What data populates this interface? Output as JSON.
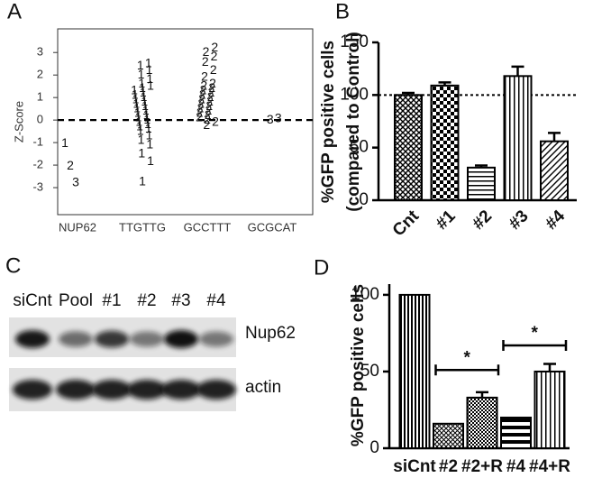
{
  "panel_labels": [
    "A",
    "B",
    "C",
    "D"
  ],
  "chart_data": [
    {
      "type": "strip",
      "y_label": "Z-Score",
      "categories": [
        "NUP62",
        "TTGTTG",
        "GCCTTT",
        "GCGCAT"
      ],
      "ylim": [
        -4.2,
        4.05
      ],
      "yticks": [
        -3,
        -2,
        -1,
        0,
        1,
        2,
        3
      ],
      "hline": 0,
      "series": [
        {
          "marker": "1",
          "color": "#1a1a1a",
          "x": [
            "NUP62",
            "TTGTTG",
            "TTGTTG",
            "TTGTTG",
            "TTGTTG",
            "TTGTTG",
            "TTGTTG",
            "TTGTTG",
            "TTGTTG",
            "TTGTTG",
            "TTGTTG",
            "TTGTTG",
            "TTGTTG",
            "TTGTTG",
            "TTGTTG",
            "TTGTTG",
            "TTGTTG",
            "TTGTTG",
            "TTGTTG",
            "TTGTTG",
            "TTGTTG",
            "TTGTTG",
            "TTGTTG",
            "TTGTTG",
            "TTGTTG",
            "TTGTTG",
            "TTGTTG",
            "TTGTTG",
            "TTGTTG",
            "TTGTTG",
            "TTGTTG",
            "TTGTTG",
            "TTGTTG",
            "TTGTTG"
          ],
          "values": [
            -1.05,
            -2.75,
            -1.85,
            -1.5,
            -1.1,
            -0.9,
            -0.7,
            -0.5,
            -0.4,
            -0.3,
            -0.2,
            -0.1,
            0,
            0.1,
            0.2,
            0.3,
            0.4,
            0.5,
            0.6,
            0.7,
            0.8,
            0.9,
            1.0,
            1.1,
            1.2,
            1.3,
            1.4,
            1.5,
            1.6,
            1.8,
            2.0,
            2.2,
            2.4,
            2.5
          ]
        },
        {
          "marker": "2",
          "color": "#d62728",
          "x": [
            "NUP62",
            "GCCTTT",
            "GCCTTT",
            "GCCTTT",
            "GCCTTT",
            "GCCTTT",
            "GCCTTT",
            "GCCTTT",
            "GCCTTT",
            "GCCTTT",
            "GCCTTT",
            "GCCTTT",
            "GCCTTT",
            "GCCTTT",
            "GCCTTT",
            "GCCTTT",
            "GCCTTT",
            "GCCTTT",
            "GCCTTT",
            "GCCTTT",
            "GCCTTT",
            "GCCTTT",
            "GCCTTT",
            "GCCTTT",
            "GCCTTT",
            "GCCTTT"
          ],
          "values": [
            -2.05,
            3.2,
            3.0,
            2.8,
            2.55,
            2.2,
            1.9,
            1.6,
            1.5,
            1.4,
            1.3,
            1.2,
            1.1,
            1.0,
            0.9,
            0.8,
            0.7,
            0.6,
            0.5,
            0.4,
            0.3,
            0.2,
            0.1,
            0,
            -0.1,
            -0.25
          ]
        },
        {
          "marker": "3",
          "color": "#4daf4a",
          "x": [
            "NUP62",
            "GCGCAT",
            "GCGCAT"
          ],
          "values": [
            -2.8,
            0,
            0.05
          ]
        }
      ]
    },
    {
      "type": "bar",
      "y_label": [
        "%GFP positive cells",
        "(compared to Control)"
      ],
      "categories": [
        "Cnt",
        "#1",
        "#2",
        "#3",
        "#4"
      ],
      "values": [
        100,
        109,
        31,
        118,
        56
      ],
      "errors": [
        2,
        3,
        2,
        9,
        8
      ],
      "ylim": [
        0,
        150
      ],
      "yticks": [
        0,
        50,
        100,
        150
      ],
      "hline": 100,
      "color": "#000",
      "patterns": [
        "crosshatch",
        "checker",
        "hlines",
        "vlines",
        "diag"
      ]
    },
    {
      "type": "bar",
      "y_label": "%GFP positive cells",
      "categories": [
        "siCnt",
        "#2",
        "#2+R",
        "#4",
        "#4+R"
      ],
      "values": [
        100,
        16,
        33,
        20,
        50
      ],
      "errors": [
        null,
        null,
        3.5,
        null,
        5
      ],
      "ylim": [
        0,
        107
      ],
      "yticks": [
        0,
        50,
        100
      ],
      "color": "#000",
      "patterns": [
        "vlines-dense",
        "diag-cross",
        "checker-small",
        "hlines-thick",
        "vlines"
      ],
      "brackets": [
        {
          "from": "#2",
          "to": "#2+R",
          "y": 51,
          "label": "*"
        },
        {
          "from": "#4",
          "to": "#4+R",
          "y": 67,
          "label": "*"
        }
      ]
    }
  ],
  "blot": {
    "lanes": [
      "siCnt",
      "Pool",
      "#1",
      "#2",
      "#3",
      "#4"
    ],
    "rows": [
      "Nup62",
      "actin"
    ]
  }
}
